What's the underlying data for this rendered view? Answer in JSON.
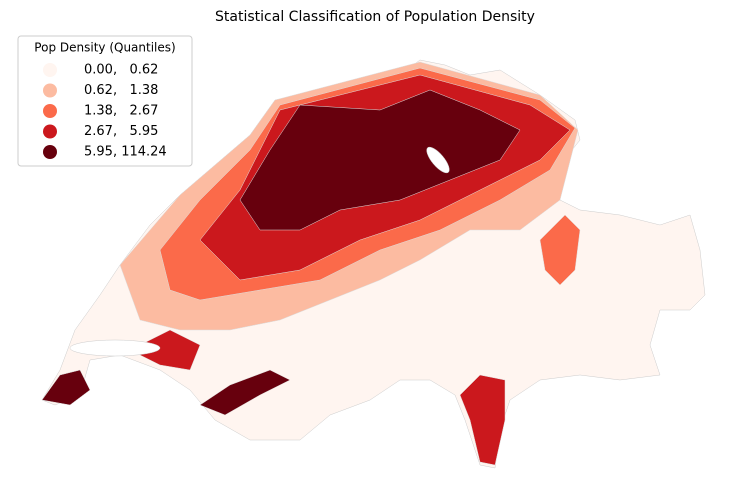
{
  "title": "Statistical Classification of Population Density",
  "legend": {
    "title": "Pop Density (Quantiles)",
    "items": [
      {
        "label": "0.00,   0.62",
        "color": "#fff5f0"
      },
      {
        "label": "0.62,   1.38",
        "color": "#fcbba1"
      },
      {
        "label": "1.38,   2.67",
        "color": "#fb6a4a"
      },
      {
        "label": "2.67,   5.95",
        "color": "#cb181d"
      },
      {
        "label": "5.95, 114.24",
        "color": "#67000d"
      }
    ]
  }
}
